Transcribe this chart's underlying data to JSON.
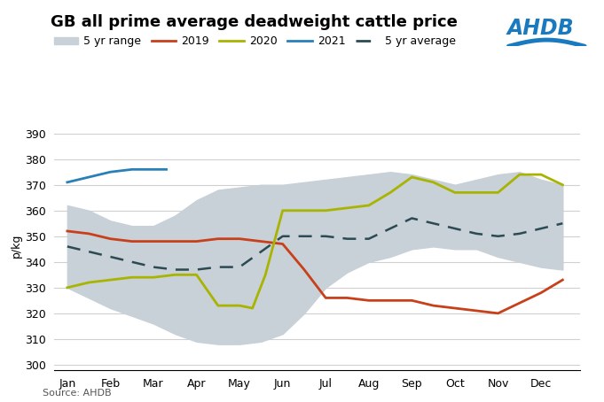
{
  "title": "GB all prime average deadweight cattle price",
  "ylabel": "p/kg",
  "source": "Source: AHDB",
  "ylim": [
    298,
    395
  ],
  "yticks": [
    300,
    310,
    320,
    330,
    340,
    350,
    360,
    370,
    380,
    390
  ],
  "months": [
    "Jan",
    "Feb",
    "Mar",
    "Apr",
    "May",
    "Jun",
    "Jul",
    "Aug",
    "Sep",
    "Oct",
    "Nov",
    "Dec"
  ],
  "x_range": [
    0,
    0.5,
    1,
    1.5,
    2,
    2.5,
    3,
    3.5,
    4,
    4.5,
    5,
    5.5,
    6,
    6.5,
    7,
    7.5,
    8,
    8.5,
    9,
    9.5,
    10,
    10.5,
    11,
    11.5
  ],
  "range_upper": [
    362,
    360,
    356,
    354,
    354,
    358,
    364,
    368,
    369,
    370,
    370,
    371,
    372,
    373,
    374,
    375,
    374,
    372,
    370,
    372,
    374,
    375,
    372,
    370
  ],
  "range_lower": [
    330,
    326,
    322,
    319,
    316,
    312,
    309,
    308,
    308,
    309,
    312,
    320,
    330,
    336,
    340,
    342,
    345,
    346,
    345,
    345,
    342,
    340,
    338,
    337
  ],
  "x_2019": [
    0,
    0.5,
    1,
    1.5,
    2,
    2.5,
    3,
    3.5,
    4,
    4.5,
    5,
    5.5,
    6,
    6.5,
    7,
    7.5,
    8,
    8.5,
    9,
    9.5,
    10,
    10.5,
    11,
    11.5
  ],
  "y_2019": [
    352,
    351,
    349,
    348,
    348,
    348,
    348,
    349,
    349,
    348,
    347,
    337,
    326,
    326,
    325,
    325,
    325,
    323,
    322,
    321,
    320,
    324,
    328,
    333
  ],
  "x_2020": [
    0,
    0.5,
    1,
    1.5,
    2,
    2.5,
    3,
    3.5,
    4,
    4.3,
    4.6,
    5,
    5.5,
    6,
    6.5,
    7,
    7.5,
    8,
    8.5,
    9,
    9.5,
    10,
    10.5,
    11,
    11.5
  ],
  "y_2020": [
    330,
    332,
    333,
    334,
    334,
    335,
    335,
    323,
    323,
    322,
    335,
    360,
    360,
    360,
    361,
    362,
    367,
    373,
    371,
    367,
    367,
    367,
    374,
    374,
    370
  ],
  "x_2021": [
    0,
    0.5,
    1,
    1.5,
    2,
    2.3
  ],
  "y_2021": [
    371,
    373,
    375,
    376,
    376,
    376
  ],
  "x_avg": [
    0,
    0.5,
    1,
    1.5,
    2,
    2.5,
    3,
    3.5,
    4,
    4.5,
    5,
    5.5,
    6,
    6.5,
    7,
    7.5,
    8,
    8.5,
    9,
    9.5,
    10,
    10.5,
    11,
    11.5
  ],
  "y_avg": [
    346,
    344,
    342,
    340,
    338,
    337,
    337,
    338,
    338,
    344,
    350,
    350,
    350,
    349,
    349,
    353,
    357,
    355,
    353,
    351,
    350,
    351,
    353,
    355
  ],
  "color_2019": "#c8401a",
  "color_2020": "#a8b400",
  "color_2021": "#2980b9",
  "color_5yravg": "#2c4a52",
  "color_range": "#c8d0d8",
  "ahdb_blue": "#1a7abf",
  "background_color": "#ffffff",
  "grid_color": "#d0d0d0",
  "title_fontsize": 13,
  "legend_fontsize": 9,
  "tick_fontsize": 9,
  "ylabel_fontsize": 9
}
